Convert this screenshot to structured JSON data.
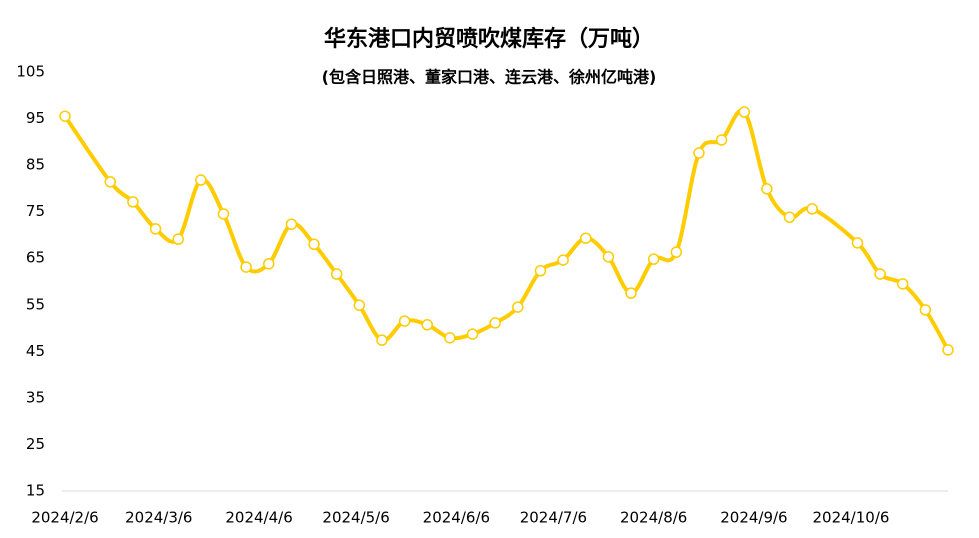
{
  "chart_data": {
    "type": "line",
    "title": "华东港口内贸喷吹煤库存（万吨）",
    "subtitle": "(包含日照港、董家口港、连云港、徐州亿吨港)",
    "x": [
      "2024/2/6",
      "2024/2/20",
      "2024/2/27",
      "2024/3/5",
      "2024/3/12",
      "2024/3/19",
      "2024/3/26",
      "2024/4/2",
      "2024/4/9",
      "2024/4/16",
      "2024/4/23",
      "2024/4/30",
      "2024/5/7",
      "2024/5/14",
      "2024/5/21",
      "2024/5/28",
      "2024/6/4",
      "2024/6/11",
      "2024/6/18",
      "2024/6/25",
      "2024/7/2",
      "2024/7/9",
      "2024/7/16",
      "2024/7/23",
      "2024/7/30",
      "2024/8/6",
      "2024/8/13",
      "2024/8/20",
      "2024/8/27",
      "2024/9/3",
      "2024/9/10",
      "2024/9/17",
      "2024/9/24",
      "2024/10/8",
      "2024/10/15",
      "2024/10/22",
      "2024/10/29",
      "2024/11/5"
    ],
    "series": [
      {
        "color": "#FFCC00",
        "values": [
          95.5,
          81.4,
          77.1,
          71.3,
          69.1,
          81.8,
          74.5,
          63.1,
          63.8,
          72.3,
          68.0,
          61.6,
          54.9,
          47.4,
          51.5,
          50.7,
          47.9,
          48.7,
          51.1,
          54.5,
          62.3,
          64.6,
          69.3,
          65.3,
          57.5,
          64.8,
          66.3,
          87.6,
          90.4,
          96.4,
          79.9,
          73.8,
          75.6,
          68.3,
          61.6,
          59.5,
          53.9,
          45.3
        ]
      }
    ],
    "xlim": [
      "2024/2/6",
      "2024/11/5"
    ],
    "xticks": [
      "2024/2/6",
      "2024/3/6",
      "2024/4/6",
      "2024/5/6",
      "2024/6/6",
      "2024/7/6",
      "2024/8/6",
      "2024/9/6",
      "2024/10/6"
    ],
    "ylim": [
      15,
      105
    ],
    "yticks": [
      15,
      25,
      35,
      45,
      55,
      65,
      75,
      85,
      95,
      105
    ],
    "grid": false
  }
}
